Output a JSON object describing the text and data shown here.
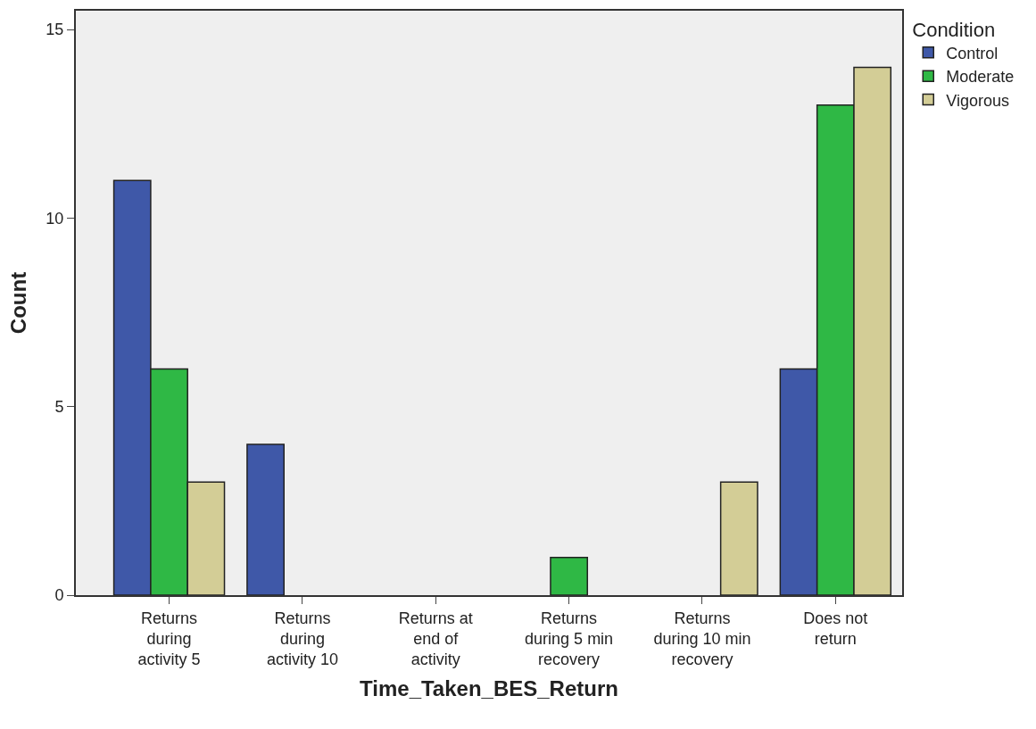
{
  "chart_data": {
    "type": "bar",
    "xlabel": "Time_Taken_BES_Return",
    "ylabel": "Count",
    "legend_title": "Condition",
    "categories": [
      "Returns during activity 5",
      "Returns during activity 10",
      "Returns at end of activity",
      "Returns during 5 min recovery",
      "Returns during 10 min recovery",
      "Does not return"
    ],
    "series": [
      {
        "name": "Control",
        "color": "#3f58a8",
        "values": [
          11,
          4,
          0,
          0,
          0,
          6
        ]
      },
      {
        "name": "Moderate",
        "color": "#2fb845",
        "values": [
          6,
          0,
          0,
          1,
          0,
          13
        ]
      },
      {
        "name": "Vigorous",
        "color": "#d3cd96",
        "values": [
          3,
          0,
          0,
          0,
          3,
          14
        ]
      }
    ],
    "ylim": [
      0,
      15.5
    ],
    "yticks": [
      0,
      5,
      10,
      15
    ],
    "grid": false,
    "legend": "right"
  }
}
